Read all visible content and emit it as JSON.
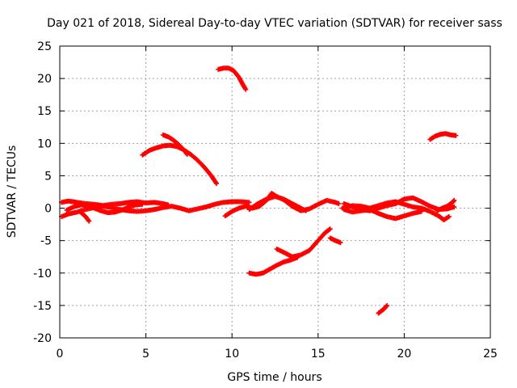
{
  "chart_data": {
    "type": "scatter",
    "title": "Day 021 of 2018, Sidereal Day-to-day VTEC variation (SDTVAR) for receiver sass",
    "xlabel": "GPS time / hours",
    "ylabel": "SDTVAR / TECUs",
    "xlim": [
      0,
      25
    ],
    "ylim": [
      -20,
      25
    ],
    "xticks": [
      0,
      5,
      10,
      15,
      20,
      25
    ],
    "yticks": [
      -20,
      -15,
      -10,
      -5,
      0,
      5,
      10,
      15,
      20,
      25
    ],
    "grid": true,
    "marker": "+",
    "color": "#ff0000",
    "series": [
      {
        "name": "trace-a",
        "points": [
          [
            0.1,
            0.9
          ],
          [
            0.5,
            1.1
          ],
          [
            1.0,
            0.9
          ],
          [
            1.5,
            0.7
          ],
          [
            2.0,
            0.6
          ],
          [
            2.5,
            0.4
          ],
          [
            3.0,
            0.6
          ],
          [
            3.5,
            0.7
          ],
          [
            4.0,
            0.9
          ],
          [
            4.5,
            1.0
          ],
          [
            5.0,
            0.8
          ],
          [
            5.5,
            0.9
          ],
          [
            6.0,
            0.7
          ],
          [
            6.3,
            0.5
          ]
        ]
      },
      {
        "name": "trace-b",
        "points": [
          [
            0.1,
            -1.3
          ],
          [
            0.5,
            -0.9
          ],
          [
            1.0,
            -0.6
          ],
          [
            1.5,
            -0.2
          ],
          [
            2.0,
            0.1
          ],
          [
            2.5,
            0.3
          ],
          [
            3.0,
            0.1
          ],
          [
            3.5,
            -0.2
          ],
          [
            4.0,
            -0.4
          ],
          [
            4.5,
            -0.5
          ],
          [
            5.0,
            -0.4
          ],
          [
            5.5,
            -0.2
          ],
          [
            6.0,
            0.1
          ],
          [
            6.5,
            0.3
          ],
          [
            7.0,
            0.0
          ],
          [
            7.5,
            -0.4
          ],
          [
            8.0,
            -0.1
          ],
          [
            8.5,
            0.2
          ],
          [
            9.0,
            0.6
          ],
          [
            9.5,
            0.9
          ],
          [
            10.0,
            1.0
          ],
          [
            10.5,
            1.0
          ],
          [
            11.0,
            0.9
          ]
        ]
      },
      {
        "name": "trace-c",
        "points": [
          [
            0.4,
            -0.3
          ],
          [
            0.8,
            0.2
          ],
          [
            1.2,
            0.5
          ],
          [
            1.6,
            0.4
          ],
          [
            2.0,
            0.0
          ],
          [
            2.4,
            -0.4
          ],
          [
            2.8,
            -0.7
          ],
          [
            3.2,
            -0.6
          ],
          [
            3.6,
            -0.3
          ],
          [
            4.0,
            0.2
          ],
          [
            4.4,
            0.5
          ],
          [
            4.8,
            0.6
          ]
        ]
      },
      {
        "name": "trace-d",
        "points": [
          [
            1.2,
            -0.6
          ],
          [
            1.5,
            -1.3
          ],
          [
            1.7,
            -2.0
          ]
        ]
      },
      {
        "name": "trace-e",
        "points": [
          [
            4.8,
            8.2
          ],
          [
            5.2,
            8.9
          ],
          [
            5.6,
            9.3
          ],
          [
            6.0,
            9.6
          ],
          [
            6.4,
            9.7
          ],
          [
            6.8,
            9.5
          ],
          [
            7.2,
            9.0
          ],
          [
            7.6,
            8.3
          ],
          [
            8.0,
            7.4
          ],
          [
            8.4,
            6.3
          ],
          [
            8.8,
            5.0
          ],
          [
            9.1,
            3.8
          ]
        ]
      },
      {
        "name": "trace-f",
        "points": [
          [
            6.0,
            11.3
          ],
          [
            6.3,
            11.0
          ],
          [
            6.6,
            10.5
          ],
          [
            6.9,
            9.8
          ],
          [
            7.2,
            9.0
          ],
          [
            7.4,
            8.3
          ]
        ]
      },
      {
        "name": "trace-g",
        "points": [
          [
            9.2,
            21.4
          ],
          [
            9.5,
            21.6
          ],
          [
            9.8,
            21.6
          ],
          [
            10.1,
            21.2
          ],
          [
            10.4,
            20.2
          ],
          [
            10.6,
            19.2
          ],
          [
            10.8,
            18.3
          ]
        ]
      },
      {
        "name": "trace-h",
        "points": [
          [
            9.6,
            -1.2
          ],
          [
            10.0,
            -0.5
          ],
          [
            10.4,
            0.0
          ],
          [
            10.8,
            0.3
          ],
          [
            11.2,
            0.0
          ],
          [
            11.6,
            0.3
          ],
          [
            12.0,
            1.2
          ],
          [
            12.3,
            2.3
          ],
          [
            12.6,
            1.8
          ],
          [
            13.0,
            1.3
          ],
          [
            13.5,
            0.3
          ],
          [
            14.0,
            -0.4
          ],
          [
            14.5,
            -0.1
          ],
          [
            15.0,
            0.6
          ],
          [
            15.5,
            1.2
          ],
          [
            16.0,
            0.9
          ],
          [
            16.2,
            0.7
          ]
        ]
      },
      {
        "name": "trace-i",
        "points": [
          [
            11.0,
            -0.2
          ],
          [
            11.5,
            0.7
          ],
          [
            12.0,
            1.4
          ],
          [
            12.5,
            1.8
          ],
          [
            13.0,
            1.4
          ],
          [
            13.5,
            0.7
          ],
          [
            14.0,
            0.0
          ],
          [
            14.3,
            -0.4
          ]
        ]
      },
      {
        "name": "trace-j",
        "points": [
          [
            11.0,
            -10.0
          ],
          [
            11.4,
            -10.2
          ],
          [
            11.8,
            -10.0
          ],
          [
            12.2,
            -9.4
          ],
          [
            12.6,
            -8.8
          ],
          [
            13.0,
            -8.3
          ],
          [
            13.4,
            -8.0
          ],
          [
            13.8,
            -7.6
          ]
        ]
      },
      {
        "name": "trace-k",
        "points": [
          [
            12.6,
            -6.3
          ],
          [
            13.0,
            -6.8
          ],
          [
            13.5,
            -7.5
          ],
          [
            14.0,
            -7.2
          ],
          [
            14.5,
            -6.5
          ],
          [
            15.0,
            -5.0
          ],
          [
            15.4,
            -3.8
          ],
          [
            15.7,
            -3.2
          ]
        ]
      },
      {
        "name": "trace-l",
        "points": [
          [
            15.7,
            -4.6
          ],
          [
            16.0,
            -5.0
          ],
          [
            16.3,
            -5.3
          ]
        ]
      },
      {
        "name": "trace-m",
        "points": [
          [
            16.5,
            0.7
          ],
          [
            17.0,
            0.2
          ],
          [
            17.5,
            -0.2
          ],
          [
            18.0,
            -0.4
          ],
          [
            18.5,
            0.0
          ],
          [
            19.0,
            0.4
          ],
          [
            19.5,
            0.7
          ],
          [
            20.0,
            1.4
          ],
          [
            20.5,
            1.6
          ],
          [
            21.0,
            1.0
          ],
          [
            21.5,
            0.3
          ],
          [
            22.0,
            -0.2
          ],
          [
            22.5,
            -0.1
          ],
          [
            22.9,
            0.2
          ]
        ]
      },
      {
        "name": "trace-n",
        "points": [
          [
            16.5,
            -0.2
          ],
          [
            17.0,
            -0.6
          ],
          [
            17.5,
            -0.4
          ],
          [
            18.0,
            -0.2
          ],
          [
            18.5,
            -0.8
          ],
          [
            19.0,
            -1.3
          ],
          [
            19.5,
            -1.6
          ],
          [
            20.0,
            -1.2
          ],
          [
            20.5,
            -0.8
          ],
          [
            21.0,
            -0.5
          ]
        ]
      },
      {
        "name": "trace-o",
        "points": [
          [
            16.4,
            0.0
          ],
          [
            17.0,
            0.4
          ],
          [
            17.5,
            0.3
          ],
          [
            18.0,
            0.0
          ],
          [
            18.5,
            0.4
          ],
          [
            19.0,
            0.8
          ],
          [
            19.5,
            1.0
          ],
          [
            20.0,
            0.6
          ],
          [
            20.5,
            0.2
          ],
          [
            21.0,
            0.0
          ],
          [
            21.5,
            -0.5
          ],
          [
            22.0,
            -1.2
          ],
          [
            22.3,
            -1.8
          ],
          [
            22.6,
            -1.3
          ]
        ]
      },
      {
        "name": "trace-p",
        "points": [
          [
            21.9,
            -0.4
          ],
          [
            22.2,
            0.0
          ],
          [
            22.5,
            0.3
          ],
          [
            22.8,
            0.9
          ],
          [
            22.9,
            1.2
          ]
        ]
      },
      {
        "name": "trace-q",
        "points": [
          [
            18.5,
            -16.2
          ],
          [
            18.8,
            -15.6
          ],
          [
            19.0,
            -15.0
          ]
        ]
      },
      {
        "name": "trace-r",
        "points": [
          [
            21.5,
            10.6
          ],
          [
            21.8,
            11.1
          ],
          [
            22.1,
            11.4
          ],
          [
            22.4,
            11.5
          ],
          [
            22.7,
            11.3
          ],
          [
            23.0,
            11.2
          ]
        ]
      }
    ]
  }
}
